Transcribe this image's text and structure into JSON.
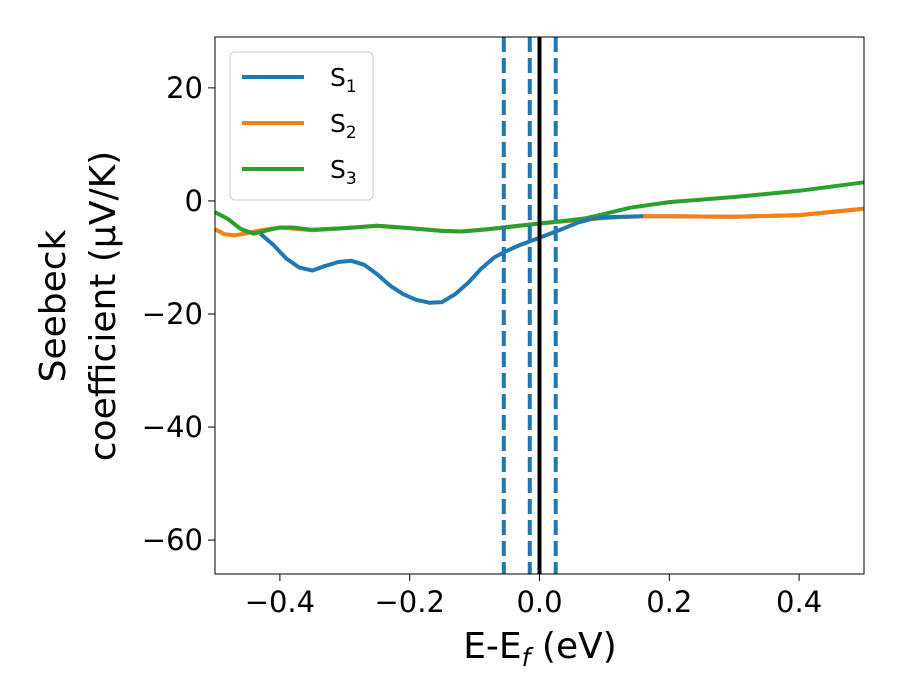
{
  "chart_data": {
    "type": "line",
    "xlabel": "E-E",
    "xlabel_sub": "f",
    "xlabel_unit": " (eV)",
    "ylabel_line1": "Seebeck",
    "ylabel_line2": "coefficient  (μV/K)",
    "xlim": [
      -0.5,
      0.5
    ],
    "ylim": [
      -66,
      29
    ],
    "xticks": [
      -0.4,
      -0.2,
      0.0,
      0.2,
      0.4
    ],
    "xtick_labels": [
      "−0.4",
      "−0.2",
      "0.0",
      "0.2",
      "0.4"
    ],
    "yticks": [
      20,
      0,
      -20,
      -40,
      -60
    ],
    "ytick_labels": [
      "20",
      "0",
      "−20",
      "−40",
      "−60"
    ],
    "grid": false,
    "legend_position": "top-left",
    "series": [
      {
        "name": "S",
        "name_sub": "1",
        "color": "#1f77b4",
        "x": [
          0.16,
          0.2,
          0.3,
          0.4,
          0.5
        ],
        "y": [
          -2.7,
          -2.7,
          -2.8,
          -2.5,
          -1.4
        ]
      },
      {
        "name": "S",
        "name_sub": "2",
        "color": "#ff7f0e",
        "x": [
          -0.5,
          -0.485,
          -0.47,
          -0.45,
          -0.43,
          -0.4,
          -0.35,
          -0.3,
          -0.25,
          -0.2,
          -0.15,
          -0.12,
          -0.08,
          -0.04,
          0.0,
          0.04,
          0.08,
          0.12,
          0.16,
          0.2,
          0.3,
          0.4,
          0.5
        ],
        "y": [
          -5.0,
          -5.9,
          -6.1,
          -5.7,
          -5.2,
          -4.7,
          -5.2,
          -4.8,
          -4.4,
          -4.8,
          -5.3,
          -5.4,
          -5.0,
          -4.5,
          -4.0,
          -3.6,
          -3.2,
          -2.9,
          -2.7,
          -2.7,
          -2.8,
          -2.5,
          -1.4
        ]
      },
      {
        "name": "S",
        "name_sub": "3",
        "color": "#2ca02c",
        "x": [
          -0.5,
          -0.48,
          -0.46,
          -0.44,
          -0.42,
          -0.4,
          -0.38,
          -0.35,
          -0.3,
          -0.25,
          -0.2,
          -0.15,
          -0.12,
          -0.08,
          -0.04,
          0.0,
          0.04,
          0.07,
          0.1,
          0.14,
          0.2,
          0.3,
          0.4,
          0.5
        ],
        "y": [
          -2.0,
          -3.2,
          -5.0,
          -5.8,
          -5.2,
          -4.7,
          -4.7,
          -5.1,
          -4.8,
          -4.4,
          -4.8,
          -5.3,
          -5.4,
          -5.0,
          -4.5,
          -4.0,
          -3.5,
          -3.1,
          -2.3,
          -1.2,
          -0.2,
          0.7,
          1.8,
          3.3
        ]
      },
      {
        "name": "S",
        "name_sub": "1",
        "color": "#1f77b4",
        "x": [
          -0.43,
          -0.41,
          -0.39,
          -0.37,
          -0.35,
          -0.33,
          -0.31,
          -0.29,
          -0.27,
          -0.25,
          -0.23,
          -0.21,
          -0.19,
          -0.17,
          -0.15,
          -0.13,
          -0.11,
          -0.09,
          -0.07,
          -0.05,
          -0.03,
          0.0,
          0.03,
          0.06,
          0.08,
          0.1,
          0.13,
          0.16
        ],
        "y": [
          -5.8,
          -7.8,
          -10.2,
          -11.8,
          -12.3,
          -11.5,
          -10.8,
          -10.6,
          -11.3,
          -13.0,
          -15.0,
          -16.5,
          -17.5,
          -18.0,
          -17.9,
          -16.5,
          -14.5,
          -12.0,
          -10.0,
          -8.8,
          -7.8,
          -6.5,
          -5.2,
          -3.8,
          -3.2,
          -2.9,
          -2.8,
          -2.7
        ]
      }
    ],
    "vlines": [
      {
        "x": -0.055,
        "style": "dashed",
        "color": "#1f77b4"
      },
      {
        "x": -0.015,
        "style": "dashed",
        "color": "#1f77b4"
      },
      {
        "x": 0.0,
        "style": "solid",
        "color": "#000000"
      },
      {
        "x": 0.025,
        "style": "dashed",
        "color": "#1f77b4"
      }
    ]
  }
}
